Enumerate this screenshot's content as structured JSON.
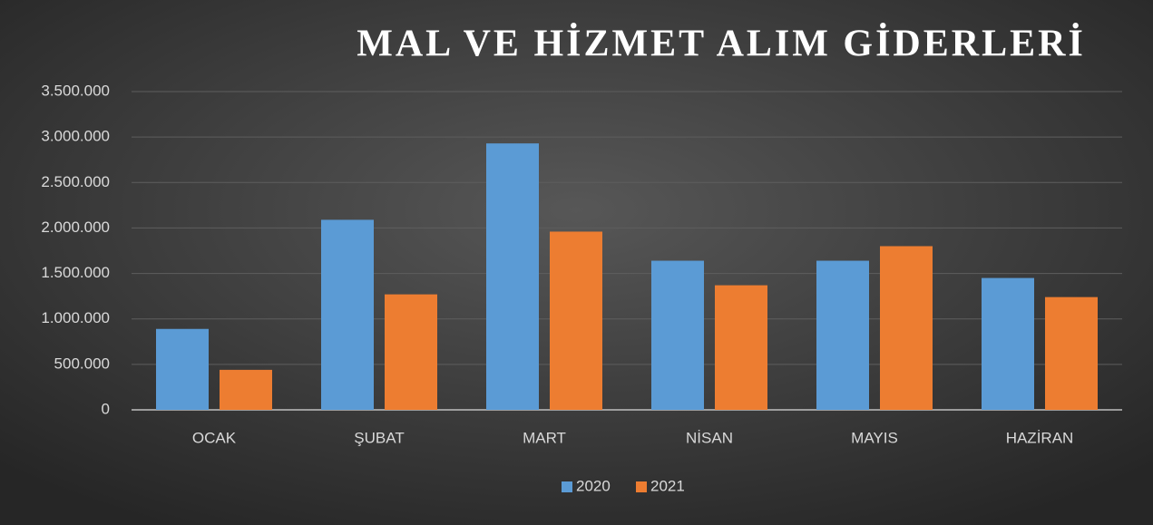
{
  "chart_data": {
    "type": "bar",
    "title": "MAL VE HİZMET ALIM GİDERLERİ",
    "categories": [
      "OCAK",
      "ŞUBAT",
      "MART",
      "NİSAN",
      "MAYIS",
      "HAZİRAN"
    ],
    "series": [
      {
        "name": "2020",
        "color": "#5b9bd5",
        "values": [
          890000,
          2090000,
          2930000,
          1640000,
          1640000,
          1450000
        ]
      },
      {
        "name": "2021",
        "color": "#ed7d31",
        "values": [
          440000,
          1270000,
          1960000,
          1370000,
          1800000,
          1240000
        ]
      }
    ],
    "ylim": [
      0,
      3500000
    ],
    "yticks": [
      0,
      {
        "value": 500000,
        "label": "500.000"
      },
      {
        "value": 1000000,
        "label": "1.000.000"
      },
      {
        "value": 1500000,
        "label": "1.500.000"
      },
      {
        "value": 2000000,
        "label": "2.000.000"
      },
      {
        "value": 2500000,
        "label": "2.500.000"
      },
      {
        "value": 3000000,
        "label": "3.000.000"
      },
      {
        "value": 3500000,
        "label": "3.500.000"
      }
    ],
    "grid": true,
    "legend": "bottom"
  }
}
